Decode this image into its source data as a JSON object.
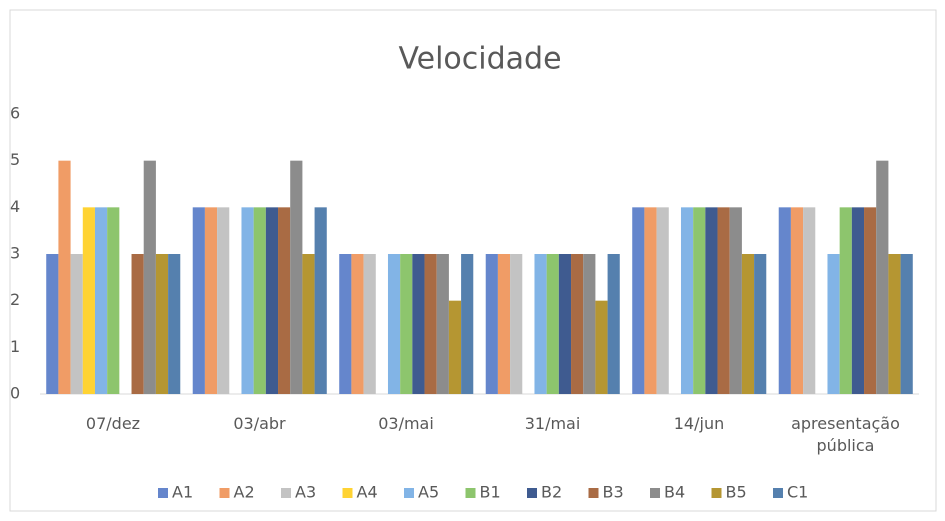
{
  "chart_data": {
    "type": "bar",
    "title": "Velocidade",
    "categories": [
      "07/dez",
      "03/abr",
      "03/mai",
      "31/mai",
      "14/jun",
      "apresentação pública"
    ],
    "series": [
      {
        "name": "A1",
        "color": "#6586cc",
        "values": [
          3,
          4,
          3,
          3,
          4,
          4
        ]
      },
      {
        "name": "A2",
        "color": "#f09c66",
        "values": [
          5,
          4,
          3,
          3,
          4,
          4
        ]
      },
      {
        "name": "A3",
        "color": "#c3c3c3",
        "values": [
          3,
          4,
          3,
          3,
          4,
          4
        ]
      },
      {
        "name": "A4",
        "color": "#ffd333",
        "values": [
          4,
          0,
          0,
          0,
          0,
          0
        ]
      },
      {
        "name": "A5",
        "color": "#82b4e6",
        "values": [
          4,
          4,
          3,
          3,
          4,
          3
        ]
      },
      {
        "name": "B1",
        "color": "#8dc56d",
        "values": [
          4,
          4,
          3,
          3,
          4,
          4
        ]
      },
      {
        "name": "B2",
        "color": "#3f5b90",
        "values": [
          0,
          4,
          3,
          3,
          4,
          4
        ]
      },
      {
        "name": "B3",
        "color": "#a96b44",
        "values": [
          3,
          4,
          3,
          3,
          4,
          4
        ]
      },
      {
        "name": "B4",
        "color": "#8c8c8c",
        "values": [
          5,
          5,
          3,
          3,
          4,
          5
        ]
      },
      {
        "name": "B5",
        "color": "#b59632",
        "values": [
          3,
          3,
          2,
          2,
          3,
          3
        ]
      },
      {
        "name": "C1",
        "color": "#5580ae",
        "values": [
          3,
          4,
          3,
          3,
          3,
          3
        ]
      }
    ],
    "ylim": [
      0,
      6
    ],
    "yticks": [
      0,
      1,
      2,
      3,
      4,
      5,
      6
    ],
    "grid": false,
    "legend": "bottom"
  }
}
